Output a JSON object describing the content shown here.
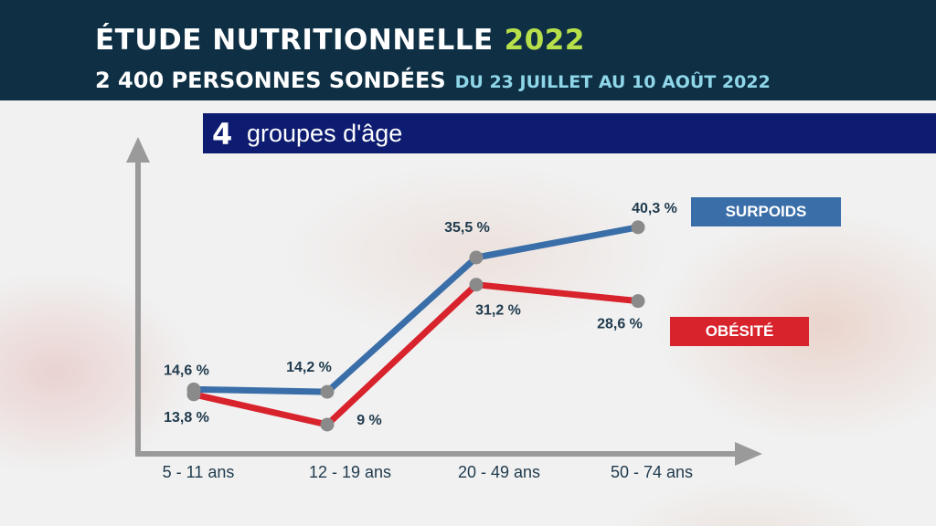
{
  "header": {
    "title": "ÉTUDE NUTRITIONNELLE",
    "year": "2022",
    "subtitle": "2 400 PERSONNES SONDÉES",
    "dates": "DU 23 JUILLET AU 10 AOÛT 2022"
  },
  "banner": {
    "number": "4",
    "text": "groupes d'âge"
  },
  "colors": {
    "surpoids": "#3a6ea8",
    "obesite": "#d8222c",
    "header_bg": "#0e2f44",
    "banner_bg": "#0d1c70",
    "year_accent": "#b8e04a",
    "axis": "#9a9a9a",
    "marker": "#8a8a8a"
  },
  "chart_data": {
    "type": "line",
    "categories": [
      "5 - 11 ans",
      "12 - 19 ans",
      "20 - 49 ans",
      "50 - 74 ans"
    ],
    "series": [
      {
        "name": "SURPOIDS",
        "values": [
          14.6,
          14.2,
          35.5,
          40.3
        ],
        "labels": [
          "14,6 %",
          "14,2 %",
          "35,5 %",
          "40,3 %"
        ]
      },
      {
        "name": "OBÉSITÉ",
        "values": [
          13.8,
          9,
          31.2,
          28.6
        ],
        "labels": [
          "13,8 %",
          "9 %",
          "31,2 %",
          "28,6 %"
        ]
      }
    ],
    "legend": "right",
    "grid": false,
    "ylim": [
      5,
      45
    ]
  }
}
